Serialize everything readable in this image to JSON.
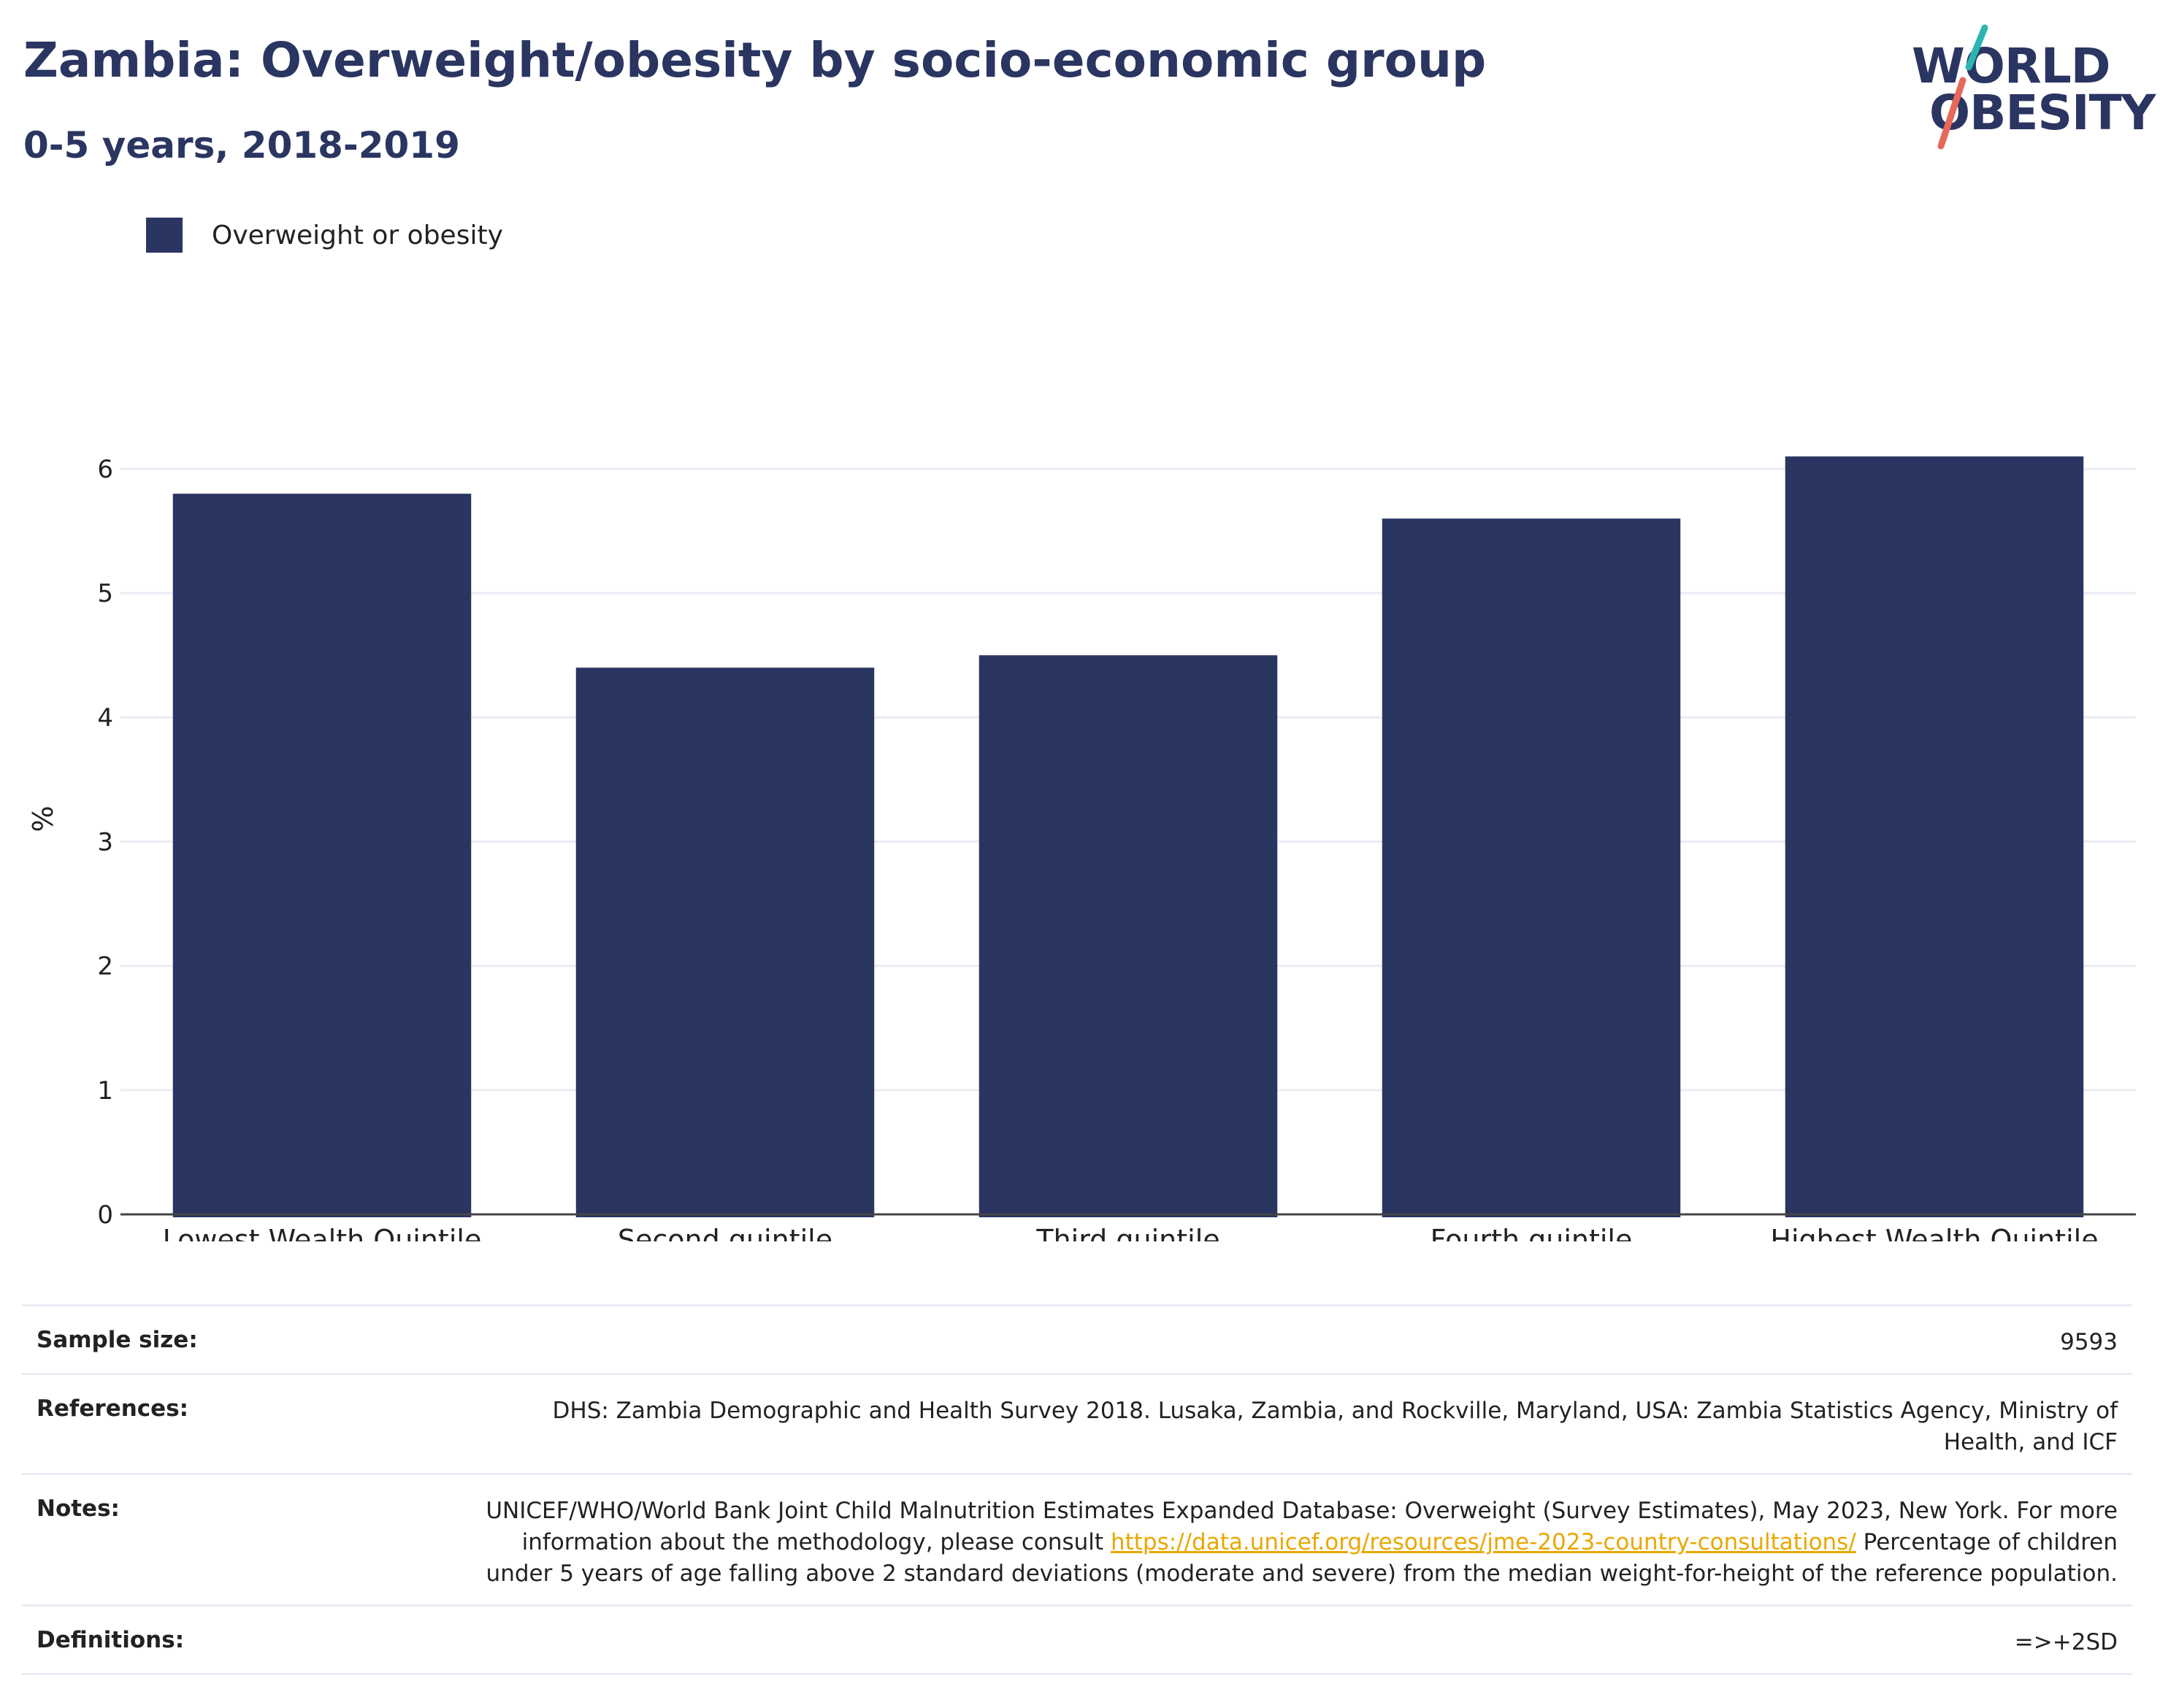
{
  "header": {
    "title": "Zambia: Overweight/obesity by socio-economic group",
    "subtitle": "0-5 years, 2018-2019"
  },
  "logo": {
    "line1": "WORLD",
    "line2": "OBESITY",
    "slash_color_top": "#2ab5b0",
    "slash_color_bottom": "#e8685a"
  },
  "legend": {
    "label": "Overweight or obesity",
    "color": "#2a3561"
  },
  "chart_data": {
    "type": "bar",
    "categories": [
      "Lowest Wealth Quintile",
      "Second quintile",
      "Third quintile",
      "Fourth quintile",
      "Highest Wealth Quintile"
    ],
    "series": [
      {
        "name": "Overweight or obesity",
        "values": [
          5.8,
          4.4,
          4.5,
          5.6,
          6.1
        ],
        "color": "#2a3561"
      }
    ],
    "ylabel": "%",
    "xlabel": "",
    "ylim": [
      0,
      6.6
    ],
    "yticks": [
      0,
      1,
      2,
      3,
      4,
      5,
      6
    ],
    "grid": true,
    "legend_position": "top-left"
  },
  "info": {
    "sample_size": {
      "label": "Sample size:",
      "value": "9593"
    },
    "references": {
      "label": "References:",
      "value": "DHS: Zambia Demographic and Health Survey 2018. Lusaka, Zambia, and Rockville, Maryland, USA: Zambia Statistics Agency, Ministry of Health, and ICF"
    },
    "notes": {
      "label": "Notes:",
      "text_before": "UNICEF/WHO/World Bank Joint Child Malnutrition Estimates Expanded Database: Overweight (Survey Estimates), May 2023, New York. For more information about the methodology, please consult ",
      "link": "https://data.unicef.org/resources/jme-2023-country-consultations/",
      "text_after": " Percentage of children under 5 years of age falling above 2 standard deviations (moderate and severe) from the median weight-for-height of the reference population."
    },
    "definitions": {
      "label": "Definitions:",
      "value": "=>+2SD"
    }
  }
}
